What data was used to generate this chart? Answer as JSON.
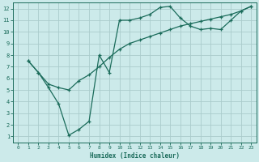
{
  "xlabel": "Humidex (Indice chaleur)",
  "bg_color": "#cceaea",
  "grid_color": "#aacccc",
  "line_color": "#1a6b5a",
  "xlim": [
    -0.5,
    23.5
  ],
  "ylim": [
    0.5,
    12.5
  ],
  "xticks": [
    0,
    1,
    2,
    3,
    4,
    5,
    6,
    7,
    8,
    9,
    10,
    11,
    12,
    13,
    14,
    15,
    16,
    17,
    18,
    19,
    20,
    21,
    22,
    23
  ],
  "yticks": [
    1,
    2,
    3,
    4,
    5,
    6,
    7,
    8,
    9,
    10,
    11,
    12
  ],
  "line1_x": [
    1,
    2,
    3,
    4,
    5,
    6,
    7,
    8,
    9,
    10,
    11,
    12,
    13,
    14,
    15,
    16,
    17,
    18,
    19,
    20,
    21,
    22,
    23
  ],
  "line1_y": [
    7.5,
    6.5,
    5.2,
    3.8,
    1.1,
    1.6,
    2.3,
    8.0,
    6.5,
    11.0,
    11.0,
    11.2,
    11.5,
    12.1,
    12.2,
    11.2,
    10.5,
    10.2,
    10.3,
    10.2,
    11.0,
    11.8,
    12.2
  ],
  "line2_x": [
    1,
    2,
    3,
    4,
    5,
    6,
    7,
    8,
    9,
    10,
    11,
    12,
    13,
    14,
    15,
    16,
    17,
    18,
    19,
    20,
    21,
    22,
    23
  ],
  "line2_y": [
    7.5,
    6.5,
    5.5,
    5.2,
    5.0,
    5.8,
    6.3,
    7.0,
    7.8,
    8.5,
    9.0,
    9.3,
    9.6,
    9.9,
    10.2,
    10.5,
    10.7,
    10.9,
    11.1,
    11.3,
    11.5,
    11.8,
    12.2
  ]
}
